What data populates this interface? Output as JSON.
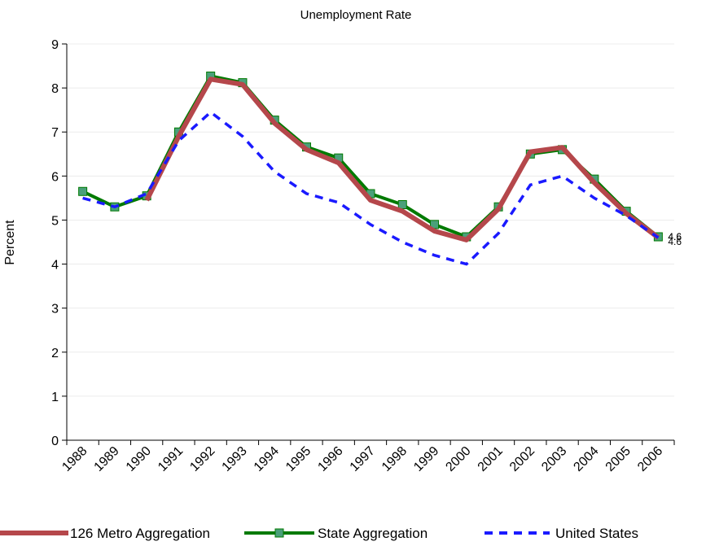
{
  "chart_data": {
    "type": "line",
    "title": "Unemployment Rate",
    "xlabel": "",
    "ylabel": "Percent",
    "categories": [
      "1988",
      "1989",
      "1990",
      "1991",
      "1992",
      "1993",
      "1994",
      "1995",
      "1996",
      "1997",
      "1998",
      "1999",
      "2000",
      "2001",
      "2002",
      "2003",
      "2004",
      "2005",
      "2006"
    ],
    "ylim": [
      0,
      9
    ],
    "yticks": [
      0,
      1,
      2,
      3,
      4,
      5,
      6,
      7,
      8,
      9
    ],
    "grid": true,
    "legend_position": "bottom",
    "series": [
      {
        "name": "126 Metro Aggregation",
        "color": "#b5474b",
        "style": "solid-thick",
        "values": [
          null,
          null,
          5.45,
          6.9,
          8.2,
          8.08,
          7.2,
          6.6,
          6.3,
          5.45,
          5.2,
          4.75,
          4.55,
          5.25,
          6.55,
          6.65,
          5.85,
          5.15,
          4.6
        ]
      },
      {
        "name": "State Aggregation",
        "color": "#007a00",
        "marker_color": "#4aa07a",
        "style": "solid-markers",
        "values": [
          5.65,
          5.3,
          5.55,
          7.0,
          8.27,
          8.12,
          7.27,
          6.66,
          6.41,
          5.6,
          5.35,
          4.9,
          4.62,
          5.3,
          6.5,
          6.6,
          5.93,
          5.2,
          4.62
        ]
      },
      {
        "name": "United States",
        "color": "#1a1aff",
        "style": "dashed",
        "values": [
          5.5,
          5.3,
          5.6,
          6.8,
          7.45,
          6.9,
          6.1,
          5.6,
          5.4,
          4.9,
          4.5,
          4.2,
          4.0,
          4.7,
          5.8,
          6.0,
          5.5,
          5.1,
          4.6
        ]
      }
    ],
    "end_labels": [
      "4.6",
      "4.6",
      "4.6"
    ]
  }
}
